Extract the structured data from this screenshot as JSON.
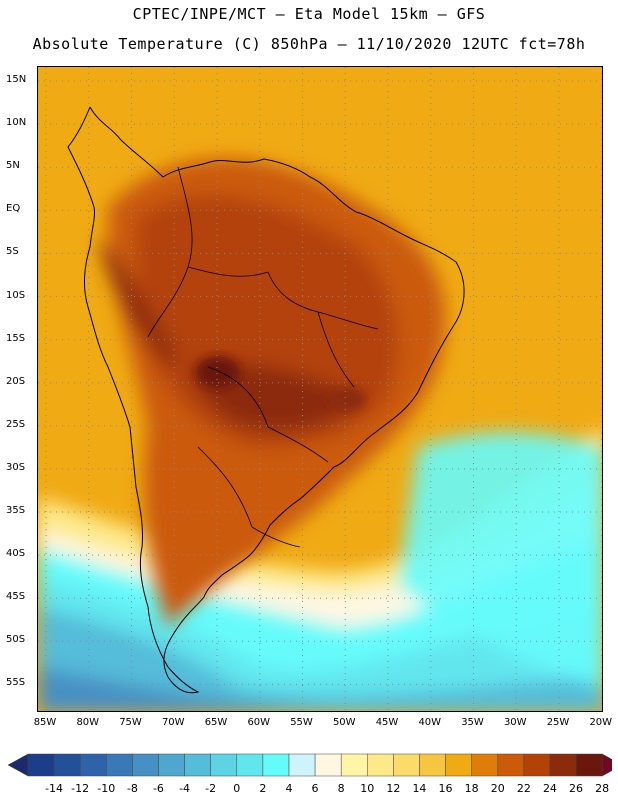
{
  "header": {
    "line1": "CPTEC/INPE/MCT –  Eta Model 15km – GFS",
    "line2": "Absolute Temperature (C) 850hPa – 11/10/2020 12UTC fct=78h"
  },
  "map": {
    "lat_labels": [
      "15N",
      "10N",
      "5N",
      "EQ",
      "5S",
      "10S",
      "15S",
      "20S",
      "25S",
      "30S",
      "35S",
      "40S",
      "45S",
      "50S",
      "55S"
    ],
    "lon_labels": [
      "85W",
      "80W",
      "75W",
      "70W",
      "65W",
      "60W",
      "55W",
      "50W",
      "45W",
      "40W",
      "35W",
      "30W",
      "25W",
      "20W"
    ],
    "extent": {
      "lon": [
        -86.5,
        -19.6
      ],
      "lat": [
        -58.5,
        16.5
      ]
    },
    "field_description_regions": [
      {
        "name": "warm-core",
        "value_range": [
          26,
          28
        ]
      }
    ]
  },
  "colorbar": {
    "labels": [
      "-14",
      "-12",
      "-10",
      "-8",
      "-6",
      "-4",
      "-2",
      "0",
      "2",
      "4",
      "6",
      "8",
      "10",
      "12",
      "14",
      "16",
      "18",
      "20",
      "22",
      "24",
      "26",
      "28"
    ],
    "colors": [
      "#1c3d8a",
      "#24509a",
      "#2e63aa",
      "#3a79b8",
      "#4690c4",
      "#4fa6cf",
      "#55bcd9",
      "#5dd3e4",
      "#62e6ee",
      "#66fbfb",
      "#cdf3fb",
      "#fff7e2",
      "#fff5a6",
      "#fde98a",
      "#fbdc6a",
      "#f6c640",
      "#f0aa14",
      "#e07d0a",
      "#cb5a0a",
      "#b34208",
      "#8c2a0c",
      "#6a170e"
    ],
    "under_color": "#1a2a6c",
    "over_color": "#6e0a22"
  }
}
